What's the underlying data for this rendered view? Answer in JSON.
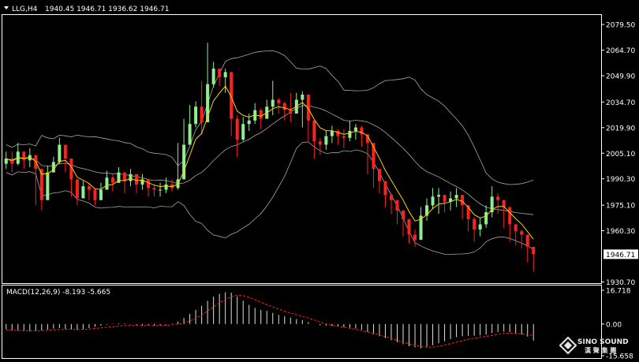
{
  "header": {
    "symbol": "LLG,H4",
    "ohlc": "1940.45 1946.71 1936.62 1946.71",
    "macd_label": "MACD(12,26,9) -8.193 -5.665"
  },
  "watermark": {
    "brand": "SINO SOUND",
    "cn": "漢 聲 集 團"
  },
  "colors": {
    "background": "#000000",
    "bull": "#90ee90",
    "bear": "#ff2020",
    "ma": "#ffd000",
    "bands": "#a8a8a8",
    "macd_hist": "#e0e0e0",
    "macd_signal": "#ff2020",
    "frame": "#ffffff"
  },
  "chart_data": [
    {
      "type": "candlestick",
      "symbol": "LLG",
      "timeframe": "H4",
      "ylim": [
        1930.0,
        2085.0
      ],
      "ytick_labels": [
        "2079.50",
        "2064.70",
        "2049.90",
        "2034.70",
        "2019.90",
        "2005.10",
        "1990.30",
        "1975.10",
        "1960.30",
        "1946.71",
        "1930.70"
      ],
      "current_price": "1946.71",
      "indicators": [
        "bollinger_bands",
        "moving_average"
      ],
      "close": [
        2002,
        1999,
        2006,
        2001,
        2004,
        1996,
        1978,
        1994,
        2000,
        2010,
        2002,
        1990,
        1979,
        1986,
        1984,
        1978,
        1984,
        1991,
        1988,
        1994,
        1989,
        1993,
        1987,
        1990,
        1985,
        1984,
        1984,
        1987,
        1985,
        1990,
        2010,
        2022,
        2032,
        2023,
        2045,
        2054,
        2049,
        2052,
        2025,
        2013,
        2022,
        2024,
        2030,
        2025,
        2032,
        2036,
        2034,
        2030,
        2028,
        2036,
        2039,
        2024,
        2012,
        2010,
        2015,
        2018,
        2015,
        2014,
        2018,
        2020,
        2016,
        2011,
        1996,
        1989,
        1981,
        1978,
        1972,
        1967,
        1958,
        1955,
        1969,
        1975,
        1980,
        1981,
        1977,
        1979,
        1981,
        1975,
        1967,
        1961,
        1964,
        1971,
        1980,
        1978,
        1974,
        1964,
        1960,
        1958,
        1951,
        1946.71
      ],
      "high": [
        2006,
        2006,
        2011,
        2005,
        2008,
        2001,
        1982,
        1998,
        2003,
        2014,
        2007,
        1995,
        1984,
        1989,
        1988,
        1985,
        1988,
        1995,
        1993,
        1997,
        1993,
        1996,
        1991,
        1993,
        1989,
        1987,
        1988,
        1991,
        1990,
        2011,
        2025,
        2033,
        2035,
        2047,
        2069,
        2058,
        2054,
        2054,
        2028,
        2027,
        2026,
        2028,
        2034,
        2031,
        2036,
        2047,
        2037,
        2035,
        2040,
        2040,
        2041,
        2029,
        2016,
        2014,
        2018,
        2021,
        2019,
        2019,
        2024,
        2022,
        2021,
        2015,
        2000,
        1993,
        1985,
        1982,
        1976,
        1970,
        1962,
        1961,
        1974,
        1979,
        1985,
        1985,
        1981,
        1983,
        1985,
        1979,
        1973,
        1968,
        1968,
        1975,
        1986,
        1982,
        1978,
        1970,
        1964,
        1961,
        1955,
        1948
      ],
      "low": [
        1996,
        1994,
        1998,
        1996,
        1997,
        1975,
        1972,
        1979,
        1995,
        1999,
        1994,
        1980,
        1975,
        1980,
        1978,
        1975,
        1979,
        1985,
        1983,
        1988,
        1982,
        1986,
        1982,
        1984,
        1980,
        1980,
        1980,
        1982,
        1983,
        1984,
        2000,
        2012,
        2020,
        2016,
        2034,
        2043,
        2044,
        2040,
        2015,
        2003,
        2012,
        2018,
        2022,
        2019,
        2026,
        2027,
        2028,
        2024,
        2023,
        2030,
        2020,
        2012,
        2002,
        2004,
        2007,
        2011,
        2010,
        2008,
        2012,
        2013,
        2009,
        1993,
        1985,
        1982,
        1974,
        1970,
        1964,
        1957,
        1953,
        1951,
        1956,
        1966,
        1973,
        1970,
        1971,
        1972,
        1974,
        1967,
        1960,
        1954,
        1957,
        1962,
        1968,
        1970,
        1962,
        1954,
        1952,
        1950,
        1942,
        1936.62
      ]
    },
    {
      "type": "bar",
      "title": "MACD(12,26,9)",
      "ylim": [
        -15.658,
        16.718
      ],
      "ytick_labels": [
        "16.718",
        "0.00",
        "-15.658"
      ],
      "main": -8.193,
      "signal": -5.665,
      "histogram": [
        -2.5,
        -3,
        -3.2,
        -3.4,
        -3.6,
        -3.4,
        -3.2,
        -2.8,
        -2.2,
        -2,
        -2.4,
        -2.8,
        -3,
        -2.6,
        -2,
        -1.4,
        -0.8,
        -0.3,
        0.2,
        0.4,
        0.3,
        -0.2,
        -0.5,
        -0.8,
        -0.8,
        -0.8,
        -0.6,
        -0.3,
        0.2,
        1.2,
        3,
        5,
        7,
        9,
        11.5,
        13.5,
        15,
        15.7,
        15.5,
        13.5,
        11.5,
        9.5,
        8,
        7,
        6.5,
        5.5,
        4.5,
        3.8,
        3.2,
        2.5,
        2,
        1,
        0,
        -0.6,
        -0.8,
        -1,
        -1.2,
        -1.5,
        -1.8,
        -2.2,
        -2.8,
        -4,
        -5,
        -6,
        -7,
        -8,
        -9,
        -10,
        -11,
        -11.5,
        -12,
        -11.5,
        -10.5,
        -9.5,
        -8.5,
        -7.5,
        -6.5,
        -6,
        -5.8,
        -5.8,
        -5.6,
        -5.2,
        -4.5,
        -4,
        -3.8,
        -4,
        -4.5,
        -5.2,
        -6.2,
        -8.193
      ],
      "signal_line": [
        -2.8,
        -3,
        -3.2,
        -3.3,
        -3.4,
        -3.4,
        -3.3,
        -3.1,
        -2.9,
        -2.7,
        -2.6,
        -2.6,
        -2.7,
        -2.7,
        -2.5,
        -2.2,
        -1.9,
        -1.6,
        -1.3,
        -1,
        -0.8,
        -0.7,
        -0.7,
        -0.7,
        -0.8,
        -0.8,
        -0.7,
        -0.6,
        -0.4,
        -0.1,
        0.5,
        1.5,
        2.8,
        4.5,
        6.5,
        8.5,
        10.5,
        12.2,
        13.5,
        14.2,
        14,
        13.2,
        12,
        10.8,
        9.6,
        8.5,
        7.4,
        6.4,
        5.5,
        4.6,
        3.8,
        3,
        2,
        1,
        0,
        -0.6,
        -1.1,
        -1.6,
        -2.1,
        -2.6,
        -3.2,
        -3.9,
        -4.6,
        -5.4,
        -6.2,
        -7.1,
        -8,
        -8.9,
        -9.8,
        -10.5,
        -11.1,
        -11.4,
        -11.4,
        -11,
        -10.4,
        -9.7,
        -9,
        -8.3,
        -7.6,
        -7,
        -6.5,
        -6.1,
        -5.6,
        -5.1,
        -4.7,
        -4.5,
        -4.6,
        -4.9,
        -5.3,
        -5.665
      ]
    }
  ]
}
